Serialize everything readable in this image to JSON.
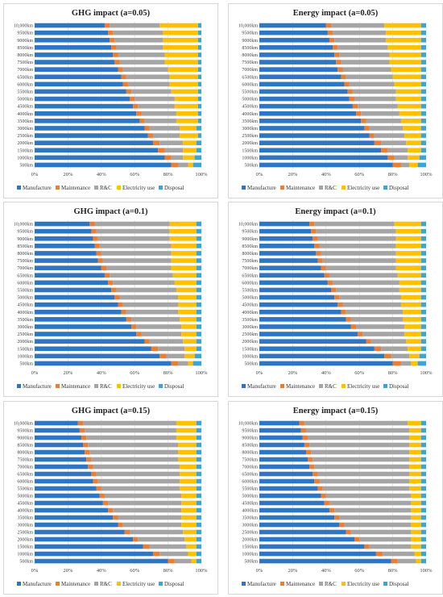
{
  "legend_colors": [
    "#2e75c4",
    "#ed7d31",
    "#a5a5a5",
    "#ffc000",
    "#3aa6d6"
  ],
  "chart_data": [
    {
      "type": "bar",
      "orientation": "horizontal-stacked-100",
      "title": "GHG impact (a=0.05)",
      "categories": [
        "500km",
        "1000km",
        "1500km",
        "2000km",
        "2500km",
        "3000km",
        "3500km",
        "4000km",
        "4500km",
        "5000km",
        "5500km",
        "6000km",
        "6500km",
        "7000km",
        "7500km",
        "8000km",
        "8500km",
        "9000km",
        "9500km",
        "10,000km"
      ],
      "xlim": [
        0,
        100
      ],
      "x_ticks": [
        "0%",
        "20%",
        "40%",
        "60%",
        "80%",
        "100%"
      ],
      "legend": "bottom",
      "series": [
        {
          "name": "Manufacture",
          "values": [
            82,
            78,
            74,
            71,
            68,
            66,
            63,
            61,
            59,
            57,
            55,
            53,
            52,
            50,
            48,
            47,
            46,
            45,
            44,
            42
          ]
        },
        {
          "name": "Maintenance",
          "values": [
            4,
            4,
            4,
            4,
            3,
            3,
            3,
            3,
            3,
            3,
            3,
            3,
            3,
            3,
            3,
            3,
            3,
            3,
            3,
            3
          ]
        },
        {
          "name": "R&C",
          "values": [
            6,
            7,
            11,
            14,
            16,
            18,
            19,
            21,
            22,
            24,
            24,
            25,
            26,
            27,
            27,
            28,
            28,
            29,
            30,
            30
          ]
        },
        {
          "name": "Electricity use",
          "values": [
            3,
            7,
            8,
            8,
            11,
            10,
            13,
            13,
            14,
            14,
            16,
            17,
            17,
            18,
            20,
            20,
            21,
            21,
            21,
            23
          ]
        },
        {
          "name": "Disposal",
          "values": [
            5,
            4,
            3,
            3,
            2,
            3,
            2,
            2,
            2,
            2,
            2,
            2,
            2,
            2,
            2,
            2,
            2,
            2,
            2,
            2
          ]
        }
      ]
    },
    {
      "type": "bar",
      "orientation": "horizontal-stacked-100",
      "title": "Energy impact (a=0.05)",
      "categories": [
        "500km",
        "1000km",
        "1500km",
        "2000km",
        "2500km",
        "3000km",
        "3500km",
        "4000km",
        "4500km",
        "5000km",
        "5500km",
        "6000km",
        "6500km",
        "7000km",
        "7500km",
        "8000km",
        "8500km",
        "9000km",
        "9500km",
        "10,000km"
      ],
      "xlim": [
        0,
        100
      ],
      "x_ticks": [
        "0%",
        "20%",
        "40%",
        "60%",
        "80%",
        "100%"
      ],
      "legend": "bottom",
      "series": [
        {
          "name": "Manufacture",
          "values": [
            80,
            77,
            73,
            69,
            66,
            63,
            61,
            58,
            56,
            54,
            53,
            51,
            49,
            47,
            46,
            45,
            44,
            42,
            41,
            40
          ]
        },
        {
          "name": "Maintenance",
          "values": [
            5,
            4,
            4,
            4,
            3,
            3,
            3,
            3,
            3,
            3,
            3,
            3,
            3,
            3,
            3,
            3,
            3,
            3,
            3,
            3
          ]
        },
        {
          "name": "R&C",
          "values": [
            5,
            8,
            12,
            15,
            18,
            20,
            21,
            23,
            24,
            25,
            26,
            27,
            28,
            29,
            29,
            30,
            30,
            31,
            32,
            32
          ]
        },
        {
          "name": "Electricity use",
          "values": [
            5,
            7,
            8,
            9,
            10,
            11,
            12,
            13,
            14,
            15,
            15,
            16,
            17,
            18,
            19,
            19,
            20,
            21,
            21,
            22
          ]
        },
        {
          "name": "Disposal",
          "values": [
            5,
            4,
            3,
            3,
            3,
            3,
            3,
            3,
            3,
            3,
            3,
            3,
            3,
            3,
            3,
            3,
            3,
            3,
            3,
            3
          ]
        }
      ]
    },
    {
      "type": "bar",
      "orientation": "horizontal-stacked-100",
      "title": "GHG impact (a=0.1)",
      "categories": [
        "500km",
        "1000km",
        "1500km",
        "2000km",
        "2500km",
        "3000km",
        "3500km",
        "4000km",
        "4500km",
        "5000km",
        "5500km",
        "6000km",
        "6500km",
        "7000km",
        "7500km",
        "8000km",
        "8500km",
        "9000km",
        "9500km",
        "10,000km"
      ],
      "xlim": [
        0,
        100
      ],
      "x_ticks": [
        "0%",
        "20%",
        "40%",
        "60%",
        "80%",
        "100%"
      ],
      "legend": "bottom",
      "series": [
        {
          "name": "Manufacture",
          "values": [
            82,
            75,
            70,
            66,
            61,
            58,
            55,
            52,
            50,
            48,
            46,
            44,
            42,
            40,
            38,
            37,
            36,
            35,
            34,
            33
          ]
        },
        {
          "name": "Maintenance",
          "values": [
            4,
            4,
            4,
            3,
            3,
            3,
            3,
            3,
            3,
            3,
            3,
            3,
            3,
            3,
            3,
            3,
            3,
            3,
            3,
            3
          ]
        },
        {
          "name": "R&C",
          "values": [
            6,
            11,
            16,
            20,
            24,
            27,
            29,
            31,
            33,
            35,
            36,
            37,
            38,
            39,
            41,
            42,
            43,
            43,
            44,
            45
          ]
        },
        {
          "name": "Electricity use",
          "values": [
            3,
            6,
            7,
            8,
            9,
            9,
            10,
            11,
            11,
            11,
            12,
            13,
            14,
            15,
            15,
            15,
            15,
            16,
            16,
            16
          ]
        },
        {
          "name": "Disposal",
          "values": [
            5,
            4,
            3,
            3,
            3,
            3,
            3,
            3,
            3,
            3,
            3,
            3,
            3,
            3,
            3,
            3,
            3,
            3,
            3,
            3
          ]
        }
      ]
    },
    {
      "type": "bar",
      "orientation": "horizontal-stacked-100",
      "title": "Energy impact (a=0.1)",
      "categories": [
        "500km",
        "1000km",
        "1500km",
        "2000km",
        "2500km",
        "3000km",
        "3500km",
        "4000km",
        "4500km",
        "5000km",
        "5500km",
        "6000km",
        "6500km",
        "7000km",
        "7500km",
        "8000km",
        "8500km",
        "9000km",
        "9500km",
        "10,000km"
      ],
      "xlim": [
        0,
        100
      ],
      "x_ticks": [
        "0%",
        "20%",
        "40%",
        "60%",
        "80%",
        "100%"
      ],
      "legend": "bottom",
      "series": [
        {
          "name": "Manufacture",
          "values": [
            80,
            75,
            69,
            64,
            59,
            55,
            52,
            49,
            47,
            45,
            43,
            41,
            39,
            37,
            35,
            34,
            33,
            32,
            31,
            30
          ]
        },
        {
          "name": "Maintenance",
          "values": [
            5,
            4,
            4,
            3,
            3,
            3,
            3,
            3,
            3,
            3,
            3,
            3,
            3,
            3,
            3,
            3,
            3,
            3,
            3,
            3
          ]
        },
        {
          "name": "R&C",
          "values": [
            6,
            11,
            16,
            21,
            25,
            29,
            31,
            34,
            35,
            37,
            38,
            40,
            41,
            42,
            44,
            45,
            46,
            47,
            48,
            48
          ]
        },
        {
          "name": "Electricity use",
          "values": [
            4,
            6,
            8,
            9,
            10,
            10,
            11,
            11,
            12,
            12,
            13,
            13,
            14,
            15,
            15,
            15,
            15,
            15,
            15,
            16
          ]
        },
        {
          "name": "Disposal",
          "values": [
            5,
            4,
            3,
            3,
            3,
            3,
            3,
            3,
            3,
            3,
            3,
            3,
            3,
            3,
            3,
            3,
            3,
            3,
            3,
            3
          ]
        }
      ]
    },
    {
      "type": "bar",
      "orientation": "horizontal-stacked-100",
      "title": "GHG impact (a=0.15)",
      "categories": [
        "500km",
        "1000km",
        "1500km",
        "2000km",
        "2500km",
        "3000km",
        "3500km",
        "4000km",
        "4500km",
        "5000km",
        "5500km",
        "6000km",
        "6500km",
        "7000km",
        "7500km",
        "8000km",
        "8500km",
        "9000km",
        "9500km",
        "10,000km"
      ],
      "xlim": [
        0,
        100
      ],
      "x_ticks": [
        "0%",
        "20%",
        "40%",
        "60%",
        "80%",
        "100%"
      ],
      "legend": "bottom",
      "series": [
        {
          "name": "Manufacture",
          "values": [
            80,
            71,
            65,
            59,
            54,
            50,
            47,
            44,
            41,
            39,
            37,
            35,
            34,
            32,
            31,
            30,
            29,
            28,
            27,
            26
          ]
        },
        {
          "name": "Maintenance",
          "values": [
            4,
            4,
            4,
            3,
            3,
            3,
            3,
            3,
            3,
            3,
            3,
            3,
            3,
            3,
            3,
            3,
            3,
            3,
            3,
            3
          ]
        },
        {
          "name": "R&C",
          "values": [
            10,
            17,
            22,
            28,
            32,
            35,
            38,
            41,
            44,
            46,
            47,
            49,
            50,
            52,
            52,
            53,
            54,
            54,
            55,
            56
          ]
        },
        {
          "name": "Electricity use",
          "values": [
            3,
            5,
            6,
            7,
            8,
            9,
            9,
            9,
            9,
            9,
            10,
            10,
            10,
            10,
            11,
            11,
            11,
            12,
            12,
            12
          ]
        },
        {
          "name": "Disposal",
          "values": [
            3,
            3,
            3,
            3,
            3,
            3,
            3,
            3,
            3,
            3,
            3,
            3,
            3,
            3,
            3,
            3,
            3,
            3,
            3,
            3
          ]
        }
      ]
    },
    {
      "type": "bar",
      "orientation": "horizontal-stacked-100",
      "title": "Energy impact (a=0.15)",
      "categories": [
        "500km",
        "1000km",
        "1500km",
        "2000km",
        "2500km",
        "3000km",
        "3500km",
        "4000km",
        "4500km",
        "5000km",
        "5500km",
        "6000km",
        "6500km",
        "7000km",
        "7500km",
        "8000km",
        "8500km",
        "9000km",
        "9500km",
        "10,000km"
      ],
      "xlim": [
        0,
        100
      ],
      "x_ticks": [
        "0%",
        "20%",
        "40%",
        "60%",
        "80%",
        "100%"
      ],
      "legend": "bottom",
      "series": [
        {
          "name": "Manufacture",
          "values": [
            79,
            70,
            63,
            57,
            52,
            48,
            45,
            42,
            39,
            37,
            35,
            33,
            32,
            30,
            29,
            28,
            27,
            26,
            25,
            24
          ]
        },
        {
          "name": "Maintenance",
          "values": [
            4,
            4,
            3,
            3,
            3,
            3,
            3,
            3,
            3,
            3,
            3,
            3,
            3,
            3,
            3,
            3,
            3,
            3,
            3,
            3
          ]
        },
        {
          "name": "R&C",
          "values": [
            11,
            19,
            25,
            31,
            36,
            40,
            43,
            46,
            49,
            51,
            52,
            54,
            55,
            57,
            58,
            59,
            60,
            61,
            62,
            62
          ]
        },
        {
          "name": "Electricity use",
          "values": [
            3,
            4,
            6,
            6,
            6,
            6,
            6,
            6,
            6,
            6,
            7,
            7,
            7,
            7,
            7,
            7,
            7,
            7,
            7,
            8
          ]
        },
        {
          "name": "Disposal",
          "values": [
            3,
            3,
            3,
            3,
            3,
            3,
            3,
            3,
            3,
            3,
            3,
            3,
            3,
            3,
            3,
            3,
            3,
            3,
            3,
            3
          ]
        }
      ]
    }
  ]
}
